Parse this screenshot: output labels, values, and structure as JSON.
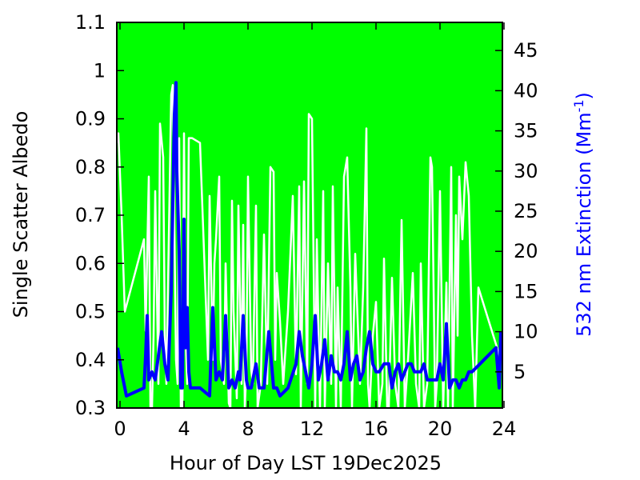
{
  "chart_data": {
    "type": "line",
    "xlabel": "Hour of Day LST 19Dec2025",
    "ylabel_left": "Single Scatter Albedo",
    "ylabel_right_prefix": "532 nm Extinction (Mm",
    "ylabel_right_sup": "-1",
    "ylabel_right_suffix": ")",
    "xlim": [
      -0.2,
      23.9
    ],
    "ylim_left": [
      0.3,
      1.1
    ],
    "ylim_right": [
      0.5,
      48.5
    ],
    "xticks": [
      0,
      4,
      8,
      12,
      16,
      20,
      24
    ],
    "yticks_left": [
      0.3,
      0.4,
      0.5,
      0.6,
      0.7,
      0.8,
      0.9,
      1.0,
      1.1
    ],
    "ytick_labels_left": [
      "0.3",
      "0.4",
      "0.5",
      "0.6",
      "0.7",
      "0.8",
      "0.9",
      "1",
      "1.1"
    ],
    "yticks_right": [
      5,
      10,
      15,
      20,
      25,
      30,
      35,
      40,
      45
    ],
    "colors": {
      "plot_background": "#00ff00",
      "albedo_series": "#ffffff",
      "extinction_series": "#0000ff",
      "right_axis_title": "#0000ff"
    },
    "series": [
      {
        "axis": "left",
        "x": [
          -0.15,
          -0.1,
          0.1,
          0.3,
          1.5,
          1.6,
          1.8,
          1.9,
          2.0,
          2.1,
          2.2,
          2.4,
          2.5,
          2.7,
          2.8,
          2.9,
          3.0,
          3.2,
          3.3,
          3.4,
          3.5,
          3.6,
          3.7,
          3.8,
          3.9,
          4.0,
          4.1,
          4.2,
          4.3,
          4.4,
          4.5,
          5.0,
          5.5,
          5.6,
          5.8,
          5.9,
          6.0,
          6.2,
          6.3,
          6.5,
          6.6,
          6.8,
          6.9,
          7.0,
          7.1,
          7.3,
          7.4,
          7.6,
          7.7,
          7.8,
          7.9,
          8.0,
          8.2,
          8.3,
          8.5,
          8.6,
          8.8,
          9.0,
          9.2,
          9.4,
          9.6,
          9.7,
          9.8,
          10.0,
          10.2,
          10.5,
          10.8,
          11.0,
          11.2,
          11.3,
          11.5,
          11.7,
          11.8,
          12.0,
          12.1,
          12.2,
          12.3,
          12.5,
          12.7,
          12.8,
          13.0,
          13.2,
          13.3,
          13.5,
          13.6,
          13.8,
          14.0,
          14.2,
          14.4,
          14.5,
          14.7,
          15.0,
          15.2,
          15.4,
          15.5,
          15.6,
          15.8,
          16.0,
          16.2,
          16.4,
          16.5,
          16.7,
          16.8,
          17.0,
          17.2,
          17.4,
          17.6,
          17.8,
          18.0,
          18.3,
          18.5,
          18.7,
          18.8,
          19.0,
          19.2,
          19.4,
          19.5,
          19.7,
          19.8,
          20.0,
          20.2,
          20.4,
          20.5,
          20.7,
          20.8,
          21.0,
          21.1,
          21.2,
          21.4,
          21.6,
          21.8,
          22.0,
          22.2,
          22.4,
          23.8
        ],
        "y": [
          0.85,
          0.87,
          0.7,
          0.5,
          0.65,
          0.46,
          0.78,
          0.3,
          0.3,
          0.45,
          0.75,
          0.35,
          0.89,
          0.82,
          0.45,
          0.35,
          0.55,
          0.95,
          0.97,
          0.67,
          0.4,
          0.35,
          0.86,
          0.3,
          0.3,
          0.87,
          0.45,
          0.35,
          0.86,
          0.86,
          0.86,
          0.85,
          0.4,
          0.74,
          0.4,
          0.6,
          0.65,
          0.78,
          0.4,
          0.35,
          0.6,
          0.31,
          0.3,
          0.73,
          0.5,
          0.32,
          0.72,
          0.35,
          0.68,
          0.3,
          0.38,
          0.78,
          0.38,
          0.35,
          0.72,
          0.3,
          0.35,
          0.66,
          0.35,
          0.8,
          0.79,
          0.4,
          0.58,
          0.48,
          0.35,
          0.5,
          0.74,
          0.37,
          0.76,
          0.3,
          0.77,
          0.35,
          0.91,
          0.9,
          0.6,
          0.3,
          0.65,
          0.3,
          0.75,
          0.3,
          0.6,
          0.35,
          0.76,
          0.3,
          0.55,
          0.3,
          0.78,
          0.82,
          0.55,
          0.3,
          0.62,
          0.35,
          0.55,
          0.88,
          0.35,
          0.3,
          0.45,
          0.52,
          0.3,
          0.35,
          0.61,
          0.3,
          0.3,
          0.57,
          0.35,
          0.3,
          0.69,
          0.3,
          0.4,
          0.58,
          0.35,
          0.3,
          0.6,
          0.3,
          0.35,
          0.82,
          0.8,
          0.3,
          0.35,
          0.75,
          0.3,
          0.56,
          0.3,
          0.8,
          0.3,
          0.7,
          0.45,
          0.78,
          0.65,
          0.81,
          0.74,
          0.45,
          0.3,
          0.55,
          0.4
        ]
      },
      {
        "axis": "right",
        "x": [
          -0.15,
          0.1,
          0.4,
          1.5,
          1.6,
          1.7,
          1.8,
          2.0,
          2.2,
          2.4,
          2.6,
          2.8,
          3.0,
          3.2,
          3.4,
          3.5,
          3.55,
          3.7,
          3.8,
          3.9,
          4.0,
          4.1,
          4.2,
          4.3,
          4.4,
          4.5,
          5.0,
          5.6,
          5.8,
          6.0,
          6.2,
          6.4,
          6.6,
          6.8,
          7.0,
          7.2,
          7.4,
          7.5,
          7.7,
          7.9,
          8.0,
          8.2,
          8.5,
          8.7,
          9.0,
          9.3,
          9.6,
          9.8,
          10.0,
          10.5,
          11.0,
          11.2,
          11.4,
          11.6,
          11.8,
          12.0,
          12.2,
          12.4,
          12.6,
          12.8,
          13.0,
          13.2,
          13.4,
          13.6,
          13.8,
          14.0,
          14.2,
          14.4,
          14.6,
          14.8,
          15.0,
          15.2,
          15.4,
          15.6,
          15.8,
          16.0,
          16.2,
          16.5,
          16.8,
          17.0,
          17.2,
          17.4,
          17.6,
          17.8,
          18.0,
          18.2,
          18.4,
          18.6,
          18.8,
          19.0,
          19.2,
          19.5,
          19.8,
          20.0,
          20.2,
          20.4,
          20.6,
          20.8,
          21.0,
          21.2,
          21.4,
          21.6,
          21.8,
          22.0,
          22.5,
          23.0,
          23.5,
          23.7,
          23.8
        ],
        "y": [
          8,
          5,
          2,
          3,
          7,
          12,
          4,
          5,
          4,
          7,
          10,
          6,
          4,
          15,
          37,
          41,
          30,
          20,
          3,
          3,
          24,
          8,
          13,
          5,
          3,
          3,
          3,
          2,
          13,
          4,
          5,
          4,
          12,
          3,
          4,
          3,
          5,
          4,
          12,
          4,
          3,
          3,
          6,
          3,
          3,
          10,
          3,
          3,
          2,
          3,
          6,
          10,
          7,
          5,
          3,
          6,
          12,
          4,
          6,
          9,
          4,
          7,
          5,
          5,
          4,
          6,
          10,
          4,
          6,
          7,
          4,
          5,
          8,
          10,
          6,
          5,
          5,
          6,
          6,
          3,
          5,
          6,
          4,
          5,
          6,
          6,
          5,
          5,
          5,
          6,
          4,
          4,
          4,
          6,
          4,
          11,
          3,
          4,
          4,
          3,
          4,
          4,
          5,
          5,
          6,
          7,
          8,
          3,
          10
        ]
      }
    ]
  }
}
